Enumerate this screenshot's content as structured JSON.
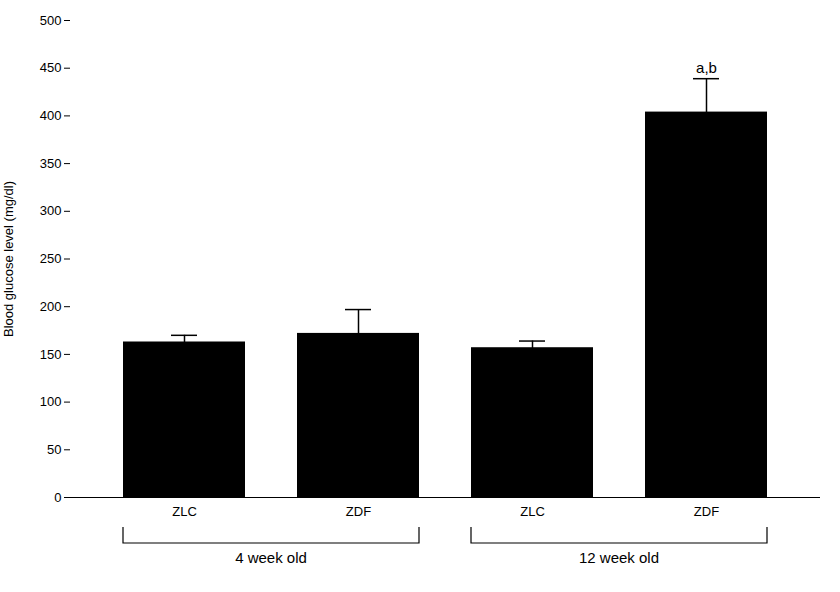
{
  "chart_data": {
    "type": "bar",
    "categories": [
      "ZLC",
      "ZDF",
      "ZLC",
      "ZDF"
    ],
    "values": [
      163,
      172,
      157,
      404
    ],
    "errors": [
      7,
      25,
      7,
      35
    ],
    "groups": [
      "4 week old",
      "4 week old",
      "12 week old",
      "12 week old"
    ],
    "color": "#000000",
    "ylabel": "Blood glucose level (mg/dl)",
    "ylim": [
      0,
      500
    ],
    "yticks": [
      0,
      50,
      100,
      150,
      200,
      250,
      300,
      350,
      400,
      450,
      500
    ],
    "annotations": [
      {
        "text": "a,b",
        "index": 3,
        "y": 445
      }
    ],
    "grid": false
  }
}
